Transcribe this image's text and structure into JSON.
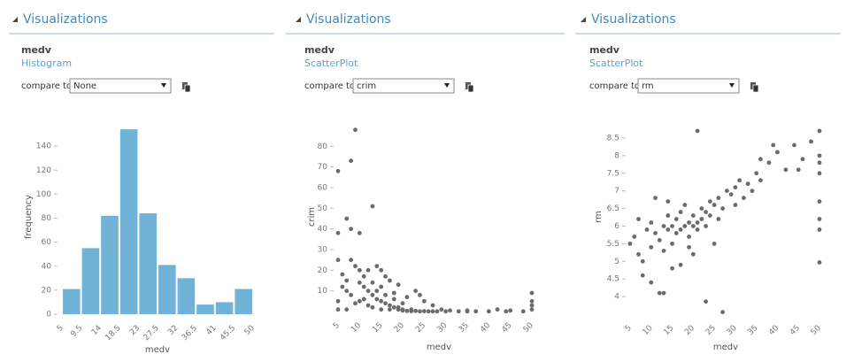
{
  "panels": [
    {
      "header": "Visualizations",
      "title": "medv",
      "subtitle": "Histogram",
      "compare_label": "compare to",
      "compare_value": "None"
    },
    {
      "header": "Visualizations",
      "title": "medv",
      "subtitle": "ScatterPlot",
      "compare_label": "compare to",
      "compare_value": "crim"
    },
    {
      "header": "Visualizations",
      "title": "medv",
      "subtitle": "ScatterPlot",
      "compare_label": "compare to",
      "compare_value": "rm"
    }
  ],
  "chart_data": [
    {
      "type": "histogram",
      "xlabel": "medv",
      "ylabel": "frequency",
      "color": "#70b3d7",
      "bins": [
        5,
        9.5,
        14,
        18.5,
        23,
        27.5,
        32,
        36.5,
        41,
        45.5,
        50
      ],
      "values": [
        21,
        55,
        82,
        154,
        84,
        41,
        30,
        8,
        10,
        21
      ],
      "xlim": [
        5,
        50
      ],
      "ylim": [
        0,
        160
      ],
      "yticks": [
        0,
        20,
        40,
        60,
        80,
        100,
        120,
        140
      ]
    },
    {
      "type": "scatter",
      "xlabel": "medv",
      "ylabel": "crim",
      "color": "#6b6b6b",
      "x": [
        5,
        5,
        7,
        8,
        9,
        8,
        10,
        13,
        5,
        6,
        7,
        8,
        9,
        10,
        11,
        12,
        13,
        14,
        15,
        16,
        17,
        18,
        19,
        20,
        21,
        22,
        23,
        24,
        25,
        26,
        27,
        28,
        30,
        33,
        35,
        37,
        40,
        44,
        48,
        50,
        50,
        50,
        50,
        12,
        10,
        11,
        14,
        15,
        16,
        18,
        20,
        21,
        23,
        24,
        27,
        14,
        15,
        17,
        19,
        7,
        8,
        10,
        12,
        13,
        15,
        17,
        19,
        20,
        22,
        9,
        11,
        6,
        5,
        7,
        13,
        16,
        18,
        25,
        29,
        31,
        35,
        42,
        45,
        5
      ],
      "values": [
        38,
        68,
        45,
        73,
        88,
        40,
        38,
        51,
        25,
        18,
        15,
        25,
        22,
        14,
        12,
        10,
        8,
        6,
        5,
        4,
        3,
        2,
        1,
        0.5,
        0.3,
        0.2,
        0.3,
        0.1,
        0.2,
        0.1,
        0.1,
        0.1,
        0.1,
        0.1,
        0.1,
        0.1,
        0.1,
        0.1,
        0.1,
        1,
        5,
        9,
        3,
        20,
        20,
        17,
        10,
        12,
        8,
        6,
        4,
        7,
        10,
        8,
        3,
        22,
        20,
        15,
        13,
        10,
        8,
        5,
        3,
        2,
        1,
        1,
        2,
        1,
        1,
        4,
        6,
        12,
        1,
        1,
        14,
        17,
        9,
        5,
        1,
        0.5,
        0.5,
        1,
        0.5,
        5
      ],
      "xlim": [
        5,
        50
      ],
      "ylim": [
        0,
        90
      ],
      "xticks": [
        5,
        10,
        15,
        20,
        25,
        30,
        35,
        40,
        45,
        50
      ],
      "yticks": [
        10,
        20,
        30,
        40,
        50,
        60,
        70,
        80
      ]
    },
    {
      "type": "scatter",
      "xlabel": "medv",
      "ylabel": "rm",
      "color": "#6b6b6b",
      "x": [
        5,
        6,
        7,
        8,
        9,
        10,
        10,
        11,
        12,
        13,
        13,
        14,
        14,
        15,
        15,
        16,
        16,
        17,
        17,
        18,
        18,
        19,
        19,
        20,
        20,
        21,
        21,
        22,
        22,
        23,
        23,
        24,
        24,
        25,
        26,
        27,
        28,
        29,
        30,
        31,
        32,
        33,
        34,
        35,
        36,
        38,
        40,
        42,
        44,
        46,
        48,
        50,
        50,
        50,
        50,
        50,
        50,
        50,
        50,
        21,
        27,
        23,
        12,
        10,
        8,
        13,
        17,
        20,
        11,
        14,
        7,
        25,
        15,
        19,
        26,
        30,
        36,
        39,
        45
      ],
      "values": [
        5.5,
        5.7,
        5.2,
        5.0,
        5.9,
        6.1,
        5.4,
        5.8,
        5.6,
        6.0,
        5.3,
        5.9,
        6.3,
        5.5,
        6.0,
        6.2,
        5.8,
        6.4,
        5.9,
        6.0,
        6.6,
        6.1,
        5.7,
        6.0,
        6.3,
        6.1,
        5.9,
        6.2,
        6.5,
        6.4,
        6.0,
        6.3,
        6.7,
        6.6,
        6.8,
        6.5,
        7.0,
        6.9,
        7.1,
        7.3,
        6.8,
        7.2,
        7.0,
        7.5,
        7.3,
        7.8,
        8.1,
        7.6,
        8.3,
        7.9,
        8.4,
        8.7,
        8.0,
        7.5,
        6.7,
        5.9,
        4.97,
        7.8,
        6.2,
        8.7,
        3.56,
        3.86,
        4.1,
        4.4,
        4.6,
        4.1,
        4.9,
        5.2,
        6.8,
        6.7,
        6.2,
        5.5,
        4.8,
        5.4,
        6.2,
        6.6,
        7.9,
        8.3,
        7.6
      ],
      "xlim": [
        5,
        50
      ],
      "ylim": [
        3.5,
        8.8
      ],
      "xticks": [
        5,
        10,
        15,
        20,
        25,
        30,
        35,
        40,
        45,
        50
      ],
      "yticks": [
        4,
        4.5,
        5,
        5.5,
        6,
        6.5,
        7,
        7.5,
        8,
        8.5
      ]
    }
  ]
}
